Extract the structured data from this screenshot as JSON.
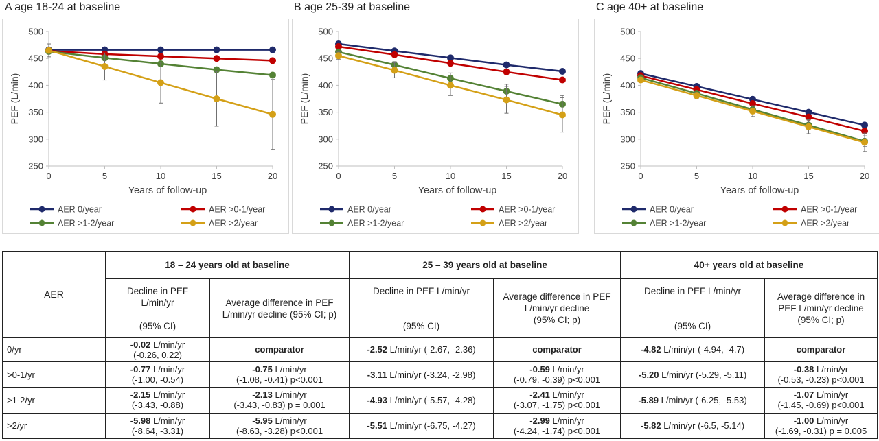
{
  "colors": {
    "aer_0": "#1f2a6b",
    "aer_0_1": "#c00000",
    "aer_1_2": "#548235",
    "aer_2": "#d4a017",
    "axis": "#bfbfbf",
    "grid": "#d9d9d9",
    "error_bar": "#707070"
  },
  "panels": [
    {
      "title": "A  age 18-24 at baseline"
    },
    {
      "title": "B  age 25-39 at baseline"
    },
    {
      "title": "C  age 40+ at baseline"
    }
  ],
  "chart_data": [
    {
      "type": "line",
      "title": "A  age 18-24 at baseline",
      "xlabel": "Years of follow-up",
      "ylabel": "PEF  (L/min)",
      "x": [
        0,
        5,
        10,
        15,
        20
      ],
      "xticks": [
        "0",
        "5",
        "10",
        "15",
        "20"
      ],
      "yticks": [
        "250",
        "300",
        "350",
        "400",
        "450",
        "500"
      ],
      "ylim": [
        250,
        500
      ],
      "xlim": [
        0,
        20
      ],
      "grid": false,
      "legend_position": "bottom",
      "series": [
        {
          "name": "AER 0/year",
          "values": [
            466,
            466,
            466,
            466,
            466
          ],
          "err": [
            0,
            0,
            0,
            0,
            0
          ]
        },
        {
          "name": "AER >0-1/year",
          "values": [
            464,
            458,
            454,
            450,
            446
          ],
          "err": [
            0,
            0,
            0,
            0,
            0
          ]
        },
        {
          "name": "AER >1-2/year",
          "values": [
            463,
            451,
            440,
            429,
            419
          ],
          "err": [
            0,
            0,
            0,
            0,
            0
          ]
        },
        {
          "name": "AER >2/year",
          "values": [
            465,
            435,
            405,
            375,
            346
          ],
          "err": [
            12,
            25,
            38,
            51,
            65
          ]
        }
      ]
    },
    {
      "type": "line",
      "title": "B  age 25-39 at baseline",
      "xlabel": "Years of follow-up",
      "ylabel": "PEF  (L/min)",
      "x": [
        0,
        5,
        10,
        15,
        20
      ],
      "xticks": [
        "0",
        "5",
        "10",
        "15",
        "20"
      ],
      "yticks": [
        "250",
        "300",
        "350",
        "400",
        "450",
        "500"
      ],
      "ylim": [
        250,
        500
      ],
      "xlim": [
        0,
        20
      ],
      "grid": false,
      "legend_position": "bottom",
      "series": [
        {
          "name": "AER 0/year",
          "values": [
            477,
            464,
            451,
            438,
            426
          ],
          "err": [
            0,
            0,
            0,
            0,
            0
          ]
        },
        {
          "name": "AER >0-1/year",
          "values": [
            472,
            457,
            441,
            425,
            410
          ],
          "err": [
            0,
            0,
            0,
            0,
            0
          ]
        },
        {
          "name": "AER >1-2/year",
          "values": [
            462,
            438,
            413,
            389,
            365
          ],
          "err": [
            3,
            6,
            10,
            13,
            16
          ]
        },
        {
          "name": "AER >2/year",
          "values": [
            455,
            428,
            400,
            373,
            345
          ],
          "err": [
            7,
            14,
            19,
            25,
            32
          ]
        }
      ]
    },
    {
      "type": "line",
      "title": "C  age 40+ at baseline",
      "xlabel": "Years of follow-up",
      "ylabel": "PEF  (L/min)",
      "x": [
        0,
        5,
        10,
        15,
        20
      ],
      "xticks": [
        "0",
        "5",
        "10",
        "15",
        "20"
      ],
      "yticks": [
        "250",
        "300",
        "350",
        "400",
        "450",
        "500"
      ],
      "ylim": [
        250,
        500
      ],
      "xlim": [
        0,
        20
      ],
      "grid": false,
      "legend_position": "bottom",
      "series": [
        {
          "name": "AER 0/year",
          "values": [
            422,
            398,
            374,
            350,
            326
          ],
          "err": [
            0,
            0,
            0,
            0,
            0
          ]
        },
        {
          "name": "AER >0-1/year",
          "values": [
            418,
            392,
            366,
            341,
            315
          ],
          "err": [
            0,
            0,
            0,
            0,
            0
          ]
        },
        {
          "name": "AER >1-2/year",
          "values": [
            414,
            385,
            355,
            326,
            296
          ],
          "err": [
            2,
            4,
            6,
            8,
            10
          ]
        },
        {
          "name": "AER >2/year",
          "values": [
            410,
            381,
            352,
            323,
            294
          ],
          "err": [
            3,
            6,
            10,
            13,
            17
          ]
        }
      ]
    }
  ],
  "table": {
    "aer_header": "AER",
    "groups": [
      "18 – 24 years old at baseline",
      "25 – 39 years old at baseline",
      "40+ years old at baseline"
    ],
    "subheaders": [
      {
        "line1": "Decline in PEF",
        "line2": "L/min/yr",
        "line3": "(95% CI)"
      },
      {
        "line1": "Average difference in PEF",
        "line2": "L/min/yr decline (95% CI; p)"
      },
      {
        "line1": "Decline in PEF L/min/yr",
        "line3": "(95% CI)"
      },
      {
        "line1": "Average difference in PEF",
        "line2": "L/min/yr decline",
        "line3": "(95% CI; p)"
      },
      {
        "line1": "Decline in PEF L/min/yr",
        "line3": "(95% CI)"
      },
      {
        "line1": "Average difference in",
        "line2": "PEF L/min/yr decline",
        "line3": "(95% CI; p)"
      }
    ],
    "rows": [
      {
        "label": "0/yr",
        "cells": [
          {
            "value": "-0.02",
            "unit": " L/min/yr",
            "ci": "(-0.26, 0.22)"
          },
          {
            "value": "comparator",
            "unit": "",
            "ci": ""
          },
          {
            "value": "-2.52",
            "unit": " L/min/yr (-2.67, -2.36)",
            "ci": ""
          },
          {
            "value": "comparator",
            "unit": "",
            "ci": ""
          },
          {
            "value": "-4.82",
            "unit": " L/min/yr (-4.94, -4.7)",
            "ci": ""
          },
          {
            "value": "comparator",
            "unit": "",
            "ci": ""
          }
        ]
      },
      {
        "label": ">0-1/yr",
        "cells": [
          {
            "value": "-0.77",
            "unit": " L/min/yr",
            "ci": "(-1.00, -0.54)"
          },
          {
            "value": "-0.75",
            "unit": " L/min/yr",
            "ci": "(-1.08, -0.41) p<0.001"
          },
          {
            "value": "-3.11",
            "unit": " L/min/yr (-3.24, -2.98)",
            "ci": ""
          },
          {
            "value": "-0.59",
            "unit": " L/min/yr",
            "ci": "(-0.79, -0.39) p<0.001"
          },
          {
            "value": "-5.20",
            "unit": " L/min/yr (-5.29, -5.11)",
            "ci": ""
          },
          {
            "value": "-0.38",
            "unit": " L/min/yr",
            "ci": "(-0.53, -0.23) p<0.001"
          }
        ]
      },
      {
        "label": ">1-2/yr",
        "cells": [
          {
            "value": "-2.15",
            "unit": " L/min/yr",
            "ci": "(-3.43, -0.88)"
          },
          {
            "value": "-2.13",
            "unit": " L/min/yr",
            "ci": "(-3.43, -0.83) p = 0.001"
          },
          {
            "value": "-4.93",
            "unit": " L/min/yr (-5.57, -4.28)",
            "ci": ""
          },
          {
            "value": "-2.41",
            "unit": " L/min/yr",
            "ci": "(-3.07, -1.75) p<0.001"
          },
          {
            "value": "-5.89",
            "unit": " L/min/yr (-6.25, -5.53)",
            "ci": ""
          },
          {
            "value": "-1.07",
            "unit": " L/min/yr",
            "ci": "(-1.45, -0.69) p<0.001"
          }
        ]
      },
      {
        "label": ">2/yr",
        "cells": [
          {
            "value": "-5.98",
            "unit": " L/min/yr",
            "ci": "(-8.64, -3.31)"
          },
          {
            "value": "-5.95",
            "unit": " L/min/yr",
            "ci": "(-8.63, -3.28) p<0.001"
          },
          {
            "value": "-5.51",
            "unit": " L/min/yr (-6.75, -4.27)",
            "ci": ""
          },
          {
            "value": "-2.99",
            "unit": " L/min/yr",
            "ci": "(-4.24, -1.74) p<0.001"
          },
          {
            "value": "-5.82",
            "unit": " L/min/yr (-6.5, -5.14)",
            "ci": ""
          },
          {
            "value": "-1.00",
            "unit": " L/min/yr",
            "ci": "(-1.69, -0.31) p = 0.005"
          }
        ]
      }
    ]
  }
}
